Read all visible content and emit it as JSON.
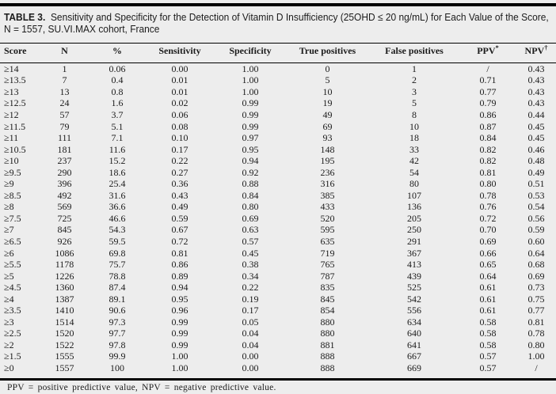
{
  "caption": {
    "label": "TABLE 3.",
    "line1": "Sensitivity and Specificity for the Detection of Vitamin D Insufficiency (25OHD ≤ 20 ng/mL) for Each Value of the Score,",
    "line2": "N = 1557, SU.VI.MAX cohort, France"
  },
  "table": {
    "columns": [
      {
        "key": "score",
        "label": "Score",
        "sup": ""
      },
      {
        "key": "n",
        "label": "N",
        "sup": ""
      },
      {
        "key": "pct",
        "label": "%",
        "sup": ""
      },
      {
        "key": "sensitivity",
        "label": "Sensitivity",
        "sup": ""
      },
      {
        "key": "specificity",
        "label": "Specificity",
        "sup": ""
      },
      {
        "key": "true-positives",
        "label": "True positives",
        "sup": ""
      },
      {
        "key": "false-positives",
        "label": "False positives",
        "sup": ""
      },
      {
        "key": "ppv",
        "label": "PPV",
        "sup": "*"
      },
      {
        "key": "npv",
        "label": "NPV",
        "sup": "†"
      }
    ],
    "rows": [
      [
        "≥14",
        "1",
        "0.06",
        "0.00",
        "1.00",
        "0",
        "1",
        "/",
        "0.43"
      ],
      [
        "≥13.5",
        "7",
        "0.4",
        "0.01",
        "1.00",
        "5",
        "2",
        "0.71",
        "0.43"
      ],
      [
        "≥13",
        "13",
        "0.8",
        "0.01",
        "1.00",
        "10",
        "3",
        "0.77",
        "0.43"
      ],
      [
        "≥12.5",
        "24",
        "1.6",
        "0.02",
        "0.99",
        "19",
        "5",
        "0.79",
        "0.43"
      ],
      [
        "≥12",
        "57",
        "3.7",
        "0.06",
        "0.99",
        "49",
        "8",
        "0.86",
        "0.44"
      ],
      [
        "≥11.5",
        "79",
        "5.1",
        "0.08",
        "0.99",
        "69",
        "10",
        "0.87",
        "0.45"
      ],
      [
        "≥11",
        "111",
        "7.1",
        "0.10",
        "0.97",
        "93",
        "18",
        "0.84",
        "0.45"
      ],
      [
        "≥10.5",
        "181",
        "11.6",
        "0.17",
        "0.95",
        "148",
        "33",
        "0.82",
        "0.46"
      ],
      [
        "≥10",
        "237",
        "15.2",
        "0.22",
        "0.94",
        "195",
        "42",
        "0.82",
        "0.48"
      ],
      [
        "≥9.5",
        "290",
        "18.6",
        "0.27",
        "0.92",
        "236",
        "54",
        "0.81",
        "0.49"
      ],
      [
        "≥9",
        "396",
        "25.4",
        "0.36",
        "0.88",
        "316",
        "80",
        "0.80",
        "0.51"
      ],
      [
        "≥8.5",
        "492",
        "31.6",
        "0.43",
        "0.84",
        "385",
        "107",
        "0.78",
        "0.53"
      ],
      [
        "≥8",
        "569",
        "36.6",
        "0.49",
        "0.80",
        "433",
        "136",
        "0.76",
        "0.54"
      ],
      [
        "≥7.5",
        "725",
        "46.6",
        "0.59",
        "0.69",
        "520",
        "205",
        "0.72",
        "0.56"
      ],
      [
        "≥7",
        "845",
        "54.3",
        "0.67",
        "0.63",
        "595",
        "250",
        "0.70",
        "0.59"
      ],
      [
        "≥6.5",
        "926",
        "59.5",
        "0.72",
        "0.57",
        "635",
        "291",
        "0.69",
        "0.60"
      ],
      [
        "≥6",
        "1086",
        "69.8",
        "0.81",
        "0.45",
        "719",
        "367",
        "0.66",
        "0.64"
      ],
      [
        "≥5.5",
        "1178",
        "75.7",
        "0.86",
        "0.38",
        "765",
        "413",
        "0.65",
        "0.68"
      ],
      [
        "≥5",
        "1226",
        "78.8",
        "0.89",
        "0.34",
        "787",
        "439",
        "0.64",
        "0.69"
      ],
      [
        "≥4.5",
        "1360",
        "87.4",
        "0.94",
        "0.22",
        "835",
        "525",
        "0.61",
        "0.73"
      ],
      [
        "≥4",
        "1387",
        "89.1",
        "0.95",
        "0.19",
        "845",
        "542",
        "0.61",
        "0.75"
      ],
      [
        "≥3.5",
        "1410",
        "90.6",
        "0.96",
        "0.17",
        "854",
        "556",
        "0.61",
        "0.77"
      ],
      [
        "≥3",
        "1514",
        "97.3",
        "0.99",
        "0.05",
        "880",
        "634",
        "0.58",
        "0.81"
      ],
      [
        "≥2.5",
        "1520",
        "97.7",
        "0.99",
        "0.04",
        "880",
        "640",
        "0.58",
        "0.78"
      ],
      [
        "≥2",
        "1522",
        "97.8",
        "0.99",
        "0.04",
        "881",
        "641",
        "0.58",
        "0.80"
      ],
      [
        "≥1.5",
        "1555",
        "99.9",
        "1.00",
        "0.00",
        "888",
        "667",
        "0.57",
        "1.00"
      ],
      [
        "≥0",
        "1557",
        "100",
        "1.00",
        "0.00",
        "888",
        "669",
        "0.57",
        "/"
      ]
    ]
  },
  "footnote": "PPV = positive predictive value, NPV = negative predictive value."
}
